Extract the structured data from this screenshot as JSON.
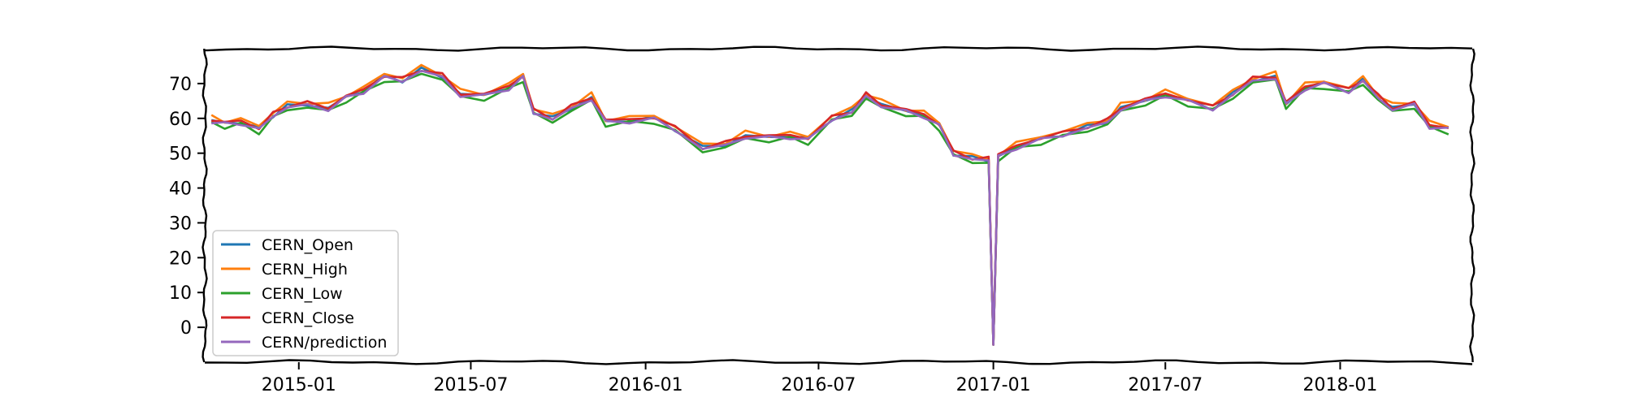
{
  "chart_data": {
    "type": "line",
    "title": "",
    "xlabel": "",
    "ylabel": "",
    "x_type": "date",
    "xlim": [
      "2014-09-24",
      "2018-05-20"
    ],
    "ylim": [
      -10,
      80
    ],
    "yticks": [
      0,
      10,
      20,
      30,
      40,
      50,
      60,
      70
    ],
    "xticks": [
      "2015-01",
      "2015-07",
      "2016-01",
      "2016-07",
      "2017-01",
      "2017-07",
      "2018-01"
    ],
    "grid": false,
    "legend_position": "lower-left",
    "series": [
      {
        "name": "CERN_Open",
        "color": "#1f77b4",
        "offset": 0.0
      },
      {
        "name": "CERN_High",
        "color": "#ff7f0e",
        "offset": 0.8
      },
      {
        "name": "CERN_Low",
        "color": "#2ca02c",
        "offset": -0.9
      },
      {
        "name": "CERN_Close",
        "color": "#d62728",
        "offset": 0.3
      },
      {
        "name": "CERN/prediction",
        "color": "#9467bd",
        "offset": -0.3
      }
    ],
    "base_points": [
      [
        "2014-10-01",
        59.5
      ],
      [
        "2014-10-15",
        58.5
      ],
      [
        "2014-11-01",
        59.0
      ],
      [
        "2014-11-20",
        57.0
      ],
      [
        "2014-12-05",
        61.0
      ],
      [
        "2014-12-20",
        63.5
      ],
      [
        "2015-01-10",
        64.0
      ],
      [
        "2015-02-01",
        63.0
      ],
      [
        "2015-02-20",
        66.0
      ],
      [
        "2015-03-10",
        68.0
      ],
      [
        "2015-04-01",
        72.0
      ],
      [
        "2015-04-20",
        71.0
      ],
      [
        "2015-05-10",
        74.0
      ],
      [
        "2015-06-01",
        72.0
      ],
      [
        "2015-06-20",
        67.0
      ],
      [
        "2015-07-15",
        66.5
      ],
      [
        "2015-08-10",
        69.0
      ],
      [
        "2015-08-25",
        72.0
      ],
      [
        "2015-09-05",
        62.0
      ],
      [
        "2015-09-25",
        60.0
      ],
      [
        "2015-10-15",
        63.0
      ],
      [
        "2015-11-05",
        66.0
      ],
      [
        "2015-11-20",
        59.0
      ],
      [
        "2015-12-15",
        59.5
      ],
      [
        "2016-01-10",
        60.0
      ],
      [
        "2016-02-01",
        57.0
      ],
      [
        "2016-03-01",
        51.5
      ],
      [
        "2016-03-25",
        52.5
      ],
      [
        "2016-04-15",
        55.0
      ],
      [
        "2016-05-10",
        54.5
      ],
      [
        "2016-06-01",
        55.0
      ],
      [
        "2016-06-20",
        54.0
      ],
      [
        "2016-07-15",
        60.0
      ],
      [
        "2016-08-05",
        62.0
      ],
      [
        "2016-08-20",
        66.5
      ],
      [
        "2016-09-05",
        64.0
      ],
      [
        "2016-10-01",
        62.0
      ],
      [
        "2016-10-20",
        61.0
      ],
      [
        "2016-11-05",
        58.0
      ],
      [
        "2016-11-20",
        50.0
      ],
      [
        "2016-12-10",
        48.5
      ],
      [
        "2016-12-27",
        48.0
      ],
      [
        "2017-01-01",
        -5.0
      ],
      [
        "2017-01-06",
        49.0
      ],
      [
        "2017-01-25",
        52.0
      ],
      [
        "2017-02-20",
        54.0
      ],
      [
        "2017-03-15",
        55.5
      ],
      [
        "2017-04-10",
        57.5
      ],
      [
        "2017-05-01",
        59.0
      ],
      [
        "2017-05-15",
        63.0
      ],
      [
        "2017-06-10",
        65.0
      ],
      [
        "2017-07-01",
        67.0
      ],
      [
        "2017-07-25",
        65.0
      ],
      [
        "2017-08-20",
        63.0
      ],
      [
        "2017-09-10",
        67.0
      ],
      [
        "2017-10-01",
        71.0
      ],
      [
        "2017-10-25",
        72.0
      ],
      [
        "2017-11-05",
        64.0
      ],
      [
        "2017-11-25",
        69.0
      ],
      [
        "2017-12-15",
        70.0
      ],
      [
        "2018-01-10",
        68.0
      ],
      [
        "2018-01-25",
        71.0
      ],
      [
        "2018-02-10",
        66.0
      ],
      [
        "2018-02-25",
        63.0
      ],
      [
        "2018-03-20",
        64.0
      ],
      [
        "2018-04-05",
        58.0
      ],
      [
        "2018-04-25",
        57.0
      ]
    ]
  }
}
